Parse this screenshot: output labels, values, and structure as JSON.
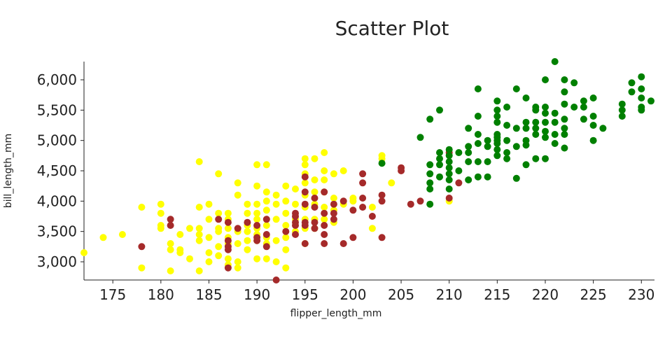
{
  "chart_data": {
    "type": "scatter",
    "title": "Scatter Plot",
    "xlabel": "flipper_length_mm",
    "ylabel": "bill_length_mm",
    "xlim": [
      172,
      231
    ],
    "ylim": [
      2700,
      6300
    ],
    "x_ticks": [
      175,
      180,
      185,
      190,
      195,
      200,
      205,
      210,
      215,
      220,
      225,
      230
    ],
    "x_tick_labels": [
      "175",
      "180",
      "185",
      "190",
      "195",
      "200",
      "205",
      "210",
      "215",
      "220",
      "225",
      "230"
    ],
    "y_ticks": [
      3000,
      3500,
      4000,
      4500,
      5000,
      5500,
      6000
    ],
    "y_tick_labels": [
      "3,000",
      "3,500",
      "4,000",
      "4,500",
      "5,000",
      "5,500",
      "6,000"
    ],
    "grid": false,
    "legend": "none",
    "series": [
      {
        "color": "#ffff00",
        "points": [
          [
            172,
            3150
          ],
          [
            174,
            3400
          ],
          [
            176,
            3450
          ],
          [
            178,
            3900
          ],
          [
            178,
            2900
          ],
          [
            180,
            3950
          ],
          [
            180,
            3800
          ],
          [
            180,
            3600
          ],
          [
            180,
            3550
          ],
          [
            181,
            3300
          ],
          [
            181,
            3200
          ],
          [
            181,
            2850
          ],
          [
            182,
            3450
          ],
          [
            182,
            3200
          ],
          [
            182,
            3150
          ],
          [
            183,
            3550
          ],
          [
            183,
            3050
          ],
          [
            184,
            4650
          ],
          [
            184,
            3900
          ],
          [
            184,
            3550
          ],
          [
            184,
            3450
          ],
          [
            184,
            3350
          ],
          [
            184,
            2850
          ],
          [
            185,
            3950
          ],
          [
            185,
            3700
          ],
          [
            185,
            3400
          ],
          [
            185,
            3150
          ],
          [
            185,
            3000
          ],
          [
            186,
            4450
          ],
          [
            186,
            3800
          ],
          [
            186,
            3550
          ],
          [
            186,
            3500
          ],
          [
            186,
            3250
          ],
          [
            186,
            3100
          ],
          [
            187,
            3800
          ],
          [
            187,
            3700
          ],
          [
            187,
            3550
          ],
          [
            187,
            3400
          ],
          [
            187,
            3300
          ],
          [
            187,
            3050
          ],
          [
            187,
            2950
          ],
          [
            188,
            4300
          ],
          [
            188,
            4100
          ],
          [
            188,
            3500
          ],
          [
            188,
            3300
          ],
          [
            188,
            3000
          ],
          [
            188,
            2900
          ],
          [
            189,
            3950
          ],
          [
            189,
            3800
          ],
          [
            189,
            3600
          ],
          [
            189,
            3500
          ],
          [
            189,
            3350
          ],
          [
            189,
            3200
          ],
          [
            190,
            4600
          ],
          [
            190,
            4250
          ],
          [
            190,
            3950
          ],
          [
            190,
            3800
          ],
          [
            190,
            3700
          ],
          [
            190,
            3550
          ],
          [
            190,
            3450
          ],
          [
            190,
            3350
          ],
          [
            190,
            3050
          ],
          [
            191,
            4600
          ],
          [
            191,
            4150
          ],
          [
            191,
            4000
          ],
          [
            191,
            3850
          ],
          [
            191,
            3700
          ],
          [
            191,
            3600
          ],
          [
            191,
            3400
          ],
          [
            191,
            3300
          ],
          [
            191,
            3050
          ],
          [
            192,
            4100
          ],
          [
            192,
            3950
          ],
          [
            192,
            3700
          ],
          [
            192,
            3350
          ],
          [
            192,
            3000
          ],
          [
            193,
            4250
          ],
          [
            193,
            4000
          ],
          [
            193,
            3800
          ],
          [
            193,
            3600
          ],
          [
            193,
            3400
          ],
          [
            193,
            3200
          ],
          [
            193,
            2900
          ],
          [
            194,
            4200
          ],
          [
            194,
            3950
          ],
          [
            194,
            3700
          ],
          [
            194,
            3500
          ],
          [
            195,
            4700
          ],
          [
            195,
            4600
          ],
          [
            195,
            4450
          ],
          [
            195,
            4300
          ],
          [
            195,
            4100
          ],
          [
            195,
            3900
          ],
          [
            195,
            3700
          ],
          [
            195,
            3550
          ],
          [
            195,
            3300
          ],
          [
            196,
            4700
          ],
          [
            196,
            4350
          ],
          [
            196,
            4150
          ],
          [
            196,
            3950
          ],
          [
            196,
            3700
          ],
          [
            196,
            3550
          ],
          [
            197,
            4800
          ],
          [
            197,
            4500
          ],
          [
            197,
            4350
          ],
          [
            197,
            4150
          ],
          [
            197,
            3900
          ],
          [
            197,
            3700
          ],
          [
            198,
            4450
          ],
          [
            198,
            4050
          ],
          [
            198,
            3850
          ],
          [
            198,
            3650
          ],
          [
            199,
            4500
          ],
          [
            199,
            3950
          ],
          [
            200,
            4050
          ],
          [
            200,
            4000
          ],
          [
            202,
            3900
          ],
          [
            202,
            3550
          ],
          [
            203,
            4750
          ],
          [
            203,
            4700
          ],
          [
            204,
            4300
          ],
          [
            210,
            4000
          ]
        ]
      },
      {
        "color": "#a52a2a",
        "points": [
          [
            178,
            3250
          ],
          [
            181,
            3700
          ],
          [
            181,
            3600
          ],
          [
            186,
            3700
          ],
          [
            187,
            3650
          ],
          [
            187,
            3350
          ],
          [
            187,
            3250
          ],
          [
            187,
            3200
          ],
          [
            187,
            2900
          ],
          [
            188,
            3550
          ],
          [
            189,
            3650
          ],
          [
            190,
            3600
          ],
          [
            190,
            3400
          ],
          [
            190,
            3350
          ],
          [
            191,
            3700
          ],
          [
            191,
            3450
          ],
          [
            191,
            3250
          ],
          [
            192,
            2700
          ],
          [
            193,
            3500
          ],
          [
            194,
            3800
          ],
          [
            194,
            3750
          ],
          [
            194,
            3650
          ],
          [
            194,
            3600
          ],
          [
            194,
            3450
          ],
          [
            195,
            4400
          ],
          [
            195,
            4150
          ],
          [
            195,
            3950
          ],
          [
            195,
            3650
          ],
          [
            195,
            3600
          ],
          [
            195,
            3300
          ],
          [
            196,
            4050
          ],
          [
            196,
            3900
          ],
          [
            196,
            3650
          ],
          [
            196,
            3550
          ],
          [
            197,
            4150
          ],
          [
            197,
            3800
          ],
          [
            197,
            3600
          ],
          [
            197,
            3450
          ],
          [
            197,
            3300
          ],
          [
            198,
            3950
          ],
          [
            198,
            3800
          ],
          [
            198,
            3700
          ],
          [
            199,
            4000
          ],
          [
            199,
            3300
          ],
          [
            200,
            3850
          ],
          [
            200,
            3400
          ],
          [
            201,
            4450
          ],
          [
            201,
            4300
          ],
          [
            201,
            4050
          ],
          [
            201,
            3900
          ],
          [
            202,
            3750
          ],
          [
            203,
            3400
          ],
          [
            203,
            4100
          ],
          [
            203,
            4000
          ],
          [
            205,
            4550
          ],
          [
            205,
            4500
          ],
          [
            206,
            3950
          ],
          [
            207,
            4000
          ],
          [
            210,
            4800
          ],
          [
            210,
            4050
          ],
          [
            211,
            4300
          ]
        ]
      },
      {
        "color": "#008000",
        "points": [
          [
            203,
            4625
          ],
          [
            207,
            5050
          ],
          [
            208,
            5350
          ],
          [
            208,
            4600
          ],
          [
            208,
            4450
          ],
          [
            208,
            4300
          ],
          [
            208,
            4200
          ],
          [
            208,
            3950
          ],
          [
            209,
            5500
          ],
          [
            209,
            4800
          ],
          [
            209,
            4700
          ],
          [
            209,
            4600
          ],
          [
            209,
            4400
          ],
          [
            210,
            4850
          ],
          [
            210,
            4750
          ],
          [
            210,
            4650
          ],
          [
            210,
            4550
          ],
          [
            210,
            4450
          ],
          [
            210,
            4350
          ],
          [
            210,
            4200
          ],
          [
            211,
            4800
          ],
          [
            211,
            4500
          ],
          [
            212,
            5200
          ],
          [
            212,
            4900
          ],
          [
            212,
            4800
          ],
          [
            212,
            4650
          ],
          [
            212,
            4350
          ],
          [
            213,
            5850
          ],
          [
            213,
            5400
          ],
          [
            213,
            5100
          ],
          [
            213,
            4950
          ],
          [
            213,
            4650
          ],
          [
            213,
            4400
          ],
          [
            214,
            5000
          ],
          [
            214,
            4900
          ],
          [
            214,
            4650
          ],
          [
            214,
            4400
          ],
          [
            215,
            5650
          ],
          [
            215,
            5500
          ],
          [
            215,
            5400
          ],
          [
            215,
            5300
          ],
          [
            215,
            5100
          ],
          [
            215,
            5050
          ],
          [
            215,
            5000
          ],
          [
            215,
            4950
          ],
          [
            215,
            4850
          ],
          [
            215,
            4750
          ],
          [
            216,
            5550
          ],
          [
            216,
            5250
          ],
          [
            216,
            5000
          ],
          [
            216,
            4800
          ],
          [
            216,
            4700
          ],
          [
            217,
            5850
          ],
          [
            217,
            5200
          ],
          [
            217,
            4900
          ],
          [
            217,
            4375
          ],
          [
            218,
            5700
          ],
          [
            218,
            5300
          ],
          [
            218,
            5200
          ],
          [
            218,
            5000
          ],
          [
            218,
            4925
          ],
          [
            218,
            4600
          ],
          [
            219,
            5550
          ],
          [
            219,
            5200
          ],
          [
            219,
            5100
          ],
          [
            219,
            4700
          ],
          [
            219,
            5500
          ],
          [
            219,
            5300
          ],
          [
            220,
            6000
          ],
          [
            220,
            5550
          ],
          [
            220,
            5450
          ],
          [
            220,
            5300
          ],
          [
            220,
            5150
          ],
          [
            220,
            5050
          ],
          [
            220,
            4700
          ],
          [
            221,
            6300
          ],
          [
            221,
            5450
          ],
          [
            221,
            5300
          ],
          [
            221,
            5100
          ],
          [
            221,
            4950
          ],
          [
            222,
            5800
          ],
          [
            222,
            6000
          ],
          [
            222,
            5600
          ],
          [
            222,
            5350
          ],
          [
            222,
            5200
          ],
          [
            222,
            5100
          ],
          [
            222,
            4875
          ],
          [
            223,
            5950
          ],
          [
            223,
            5550
          ],
          [
            224,
            5650
          ],
          [
            224,
            5550
          ],
          [
            224,
            5350
          ],
          [
            225,
            5700
          ],
          [
            225,
            5400
          ],
          [
            225,
            5250
          ],
          [
            225,
            5000
          ],
          [
            226,
            5200
          ],
          [
            228,
            5600
          ],
          [
            228,
            5500
          ],
          [
            228,
            5400
          ],
          [
            229,
            5950
          ],
          [
            229,
            5800
          ],
          [
            230,
            6050
          ],
          [
            230,
            5850
          ],
          [
            230,
            5700
          ],
          [
            230,
            5550
          ],
          [
            230,
            5500
          ],
          [
            231,
            5650
          ]
        ]
      }
    ]
  }
}
